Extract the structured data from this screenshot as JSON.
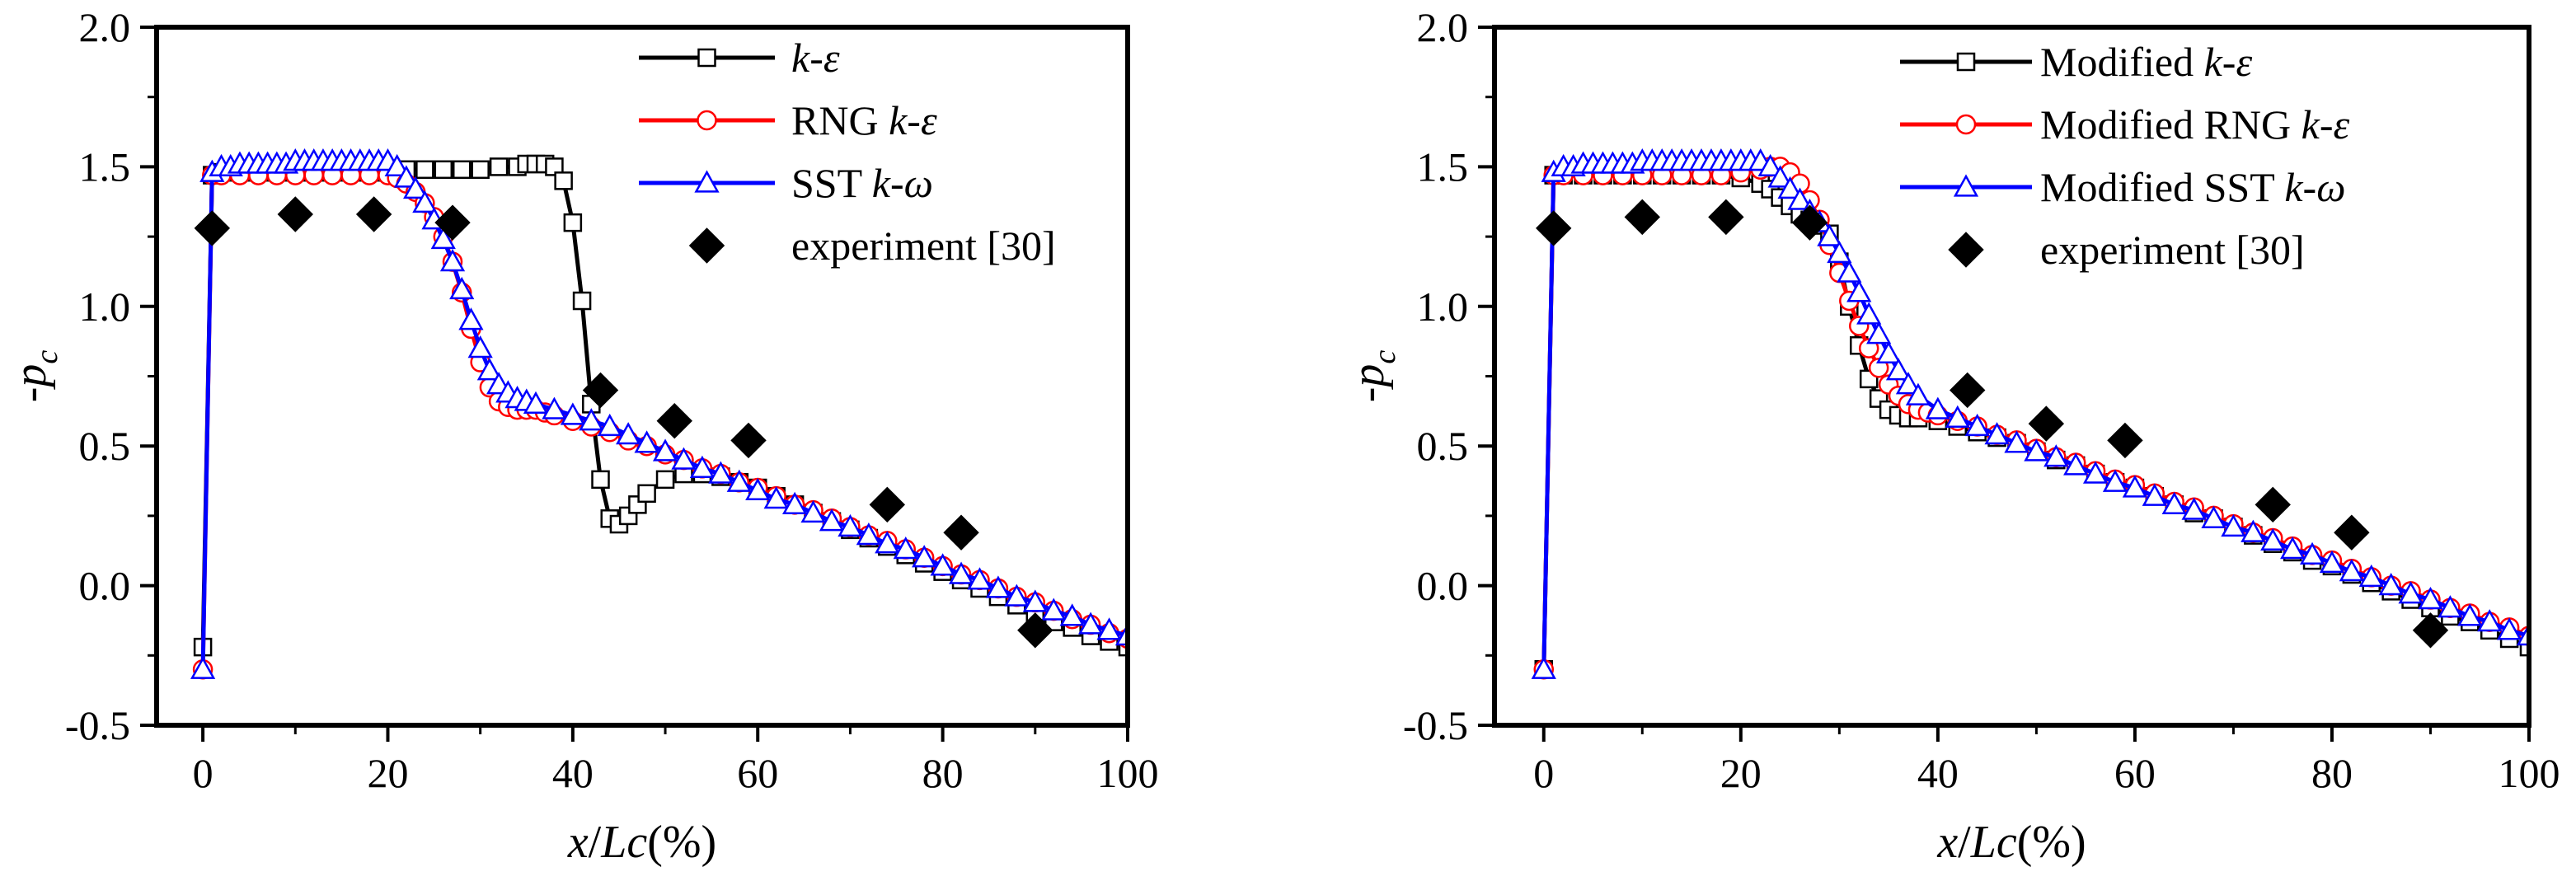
{
  "chart_data": [
    {
      "type": "line",
      "panel": "left",
      "title": "",
      "xlabel": {
        "var": "x",
        "sep": "/",
        "lc": "Lc",
        "unit": "(%)"
      },
      "ylabel": {
        "minus": "-",
        "p": "p",
        "sub": "c"
      },
      "xlim": [
        -5,
        100
      ],
      "ylim": [
        -0.5,
        2.0
      ],
      "xticks": [
        0,
        20,
        40,
        60,
        80,
        100
      ],
      "xtick_labels": [
        "0",
        "20",
        "40",
        "60",
        "80",
        "100"
      ],
      "yticks": [
        -0.5,
        0.0,
        0.5,
        1.0,
        1.5,
        2.0
      ],
      "ytick_labels": [
        "-0.5",
        "0.0",
        "0.5",
        "1.0",
        "1.5",
        "2.0"
      ],
      "legend_position": "top-right",
      "series": [
        {
          "name": "k-ε",
          "legend_parts": [
            {
              "t": "k",
              "i": true
            },
            {
              "t": "-",
              "i": false
            },
            {
              "t": "ε",
              "i": true
            }
          ],
          "color": "#000000",
          "marker": "square",
          "x": [
            0,
            1,
            2,
            4,
            6,
            8,
            10,
            12,
            14,
            16,
            18,
            20,
            22,
            24,
            26,
            28,
            30,
            32,
            34,
            35,
            36,
            37,
            38,
            39,
            40,
            41,
            42,
            43,
            44,
            45,
            46,
            47,
            48,
            50,
            52,
            54,
            56,
            58,
            60,
            62,
            64,
            66,
            68,
            70,
            72,
            74,
            76,
            78,
            80,
            82,
            84,
            86,
            88,
            90,
            92,
            94,
            96,
            98,
            100
          ],
          "y": [
            -0.22,
            1.47,
            1.48,
            1.48,
            1.48,
            1.48,
            1.48,
            1.48,
            1.48,
            1.48,
            1.48,
            1.48,
            1.49,
            1.49,
            1.49,
            1.49,
            1.49,
            1.5,
            1.5,
            1.51,
            1.51,
            1.51,
            1.5,
            1.45,
            1.3,
            1.02,
            0.65,
            0.38,
            0.24,
            0.22,
            0.25,
            0.29,
            0.33,
            0.38,
            0.4,
            0.4,
            0.39,
            0.37,
            0.35,
            0.32,
            0.29,
            0.26,
            0.23,
            0.2,
            0.17,
            0.14,
            0.11,
            0.08,
            0.05,
            0.02,
            -0.01,
            -0.04,
            -0.07,
            -0.1,
            -0.13,
            -0.15,
            -0.18,
            -0.2,
            -0.22
          ],
          "marker_every": 1
        },
        {
          "name": "RNG k-ε",
          "legend_parts": [
            {
              "t": "RNG ",
              "i": false
            },
            {
              "t": "k",
              "i": true
            },
            {
              "t": "-",
              "i": false
            },
            {
              "t": "ε",
              "i": true
            }
          ],
          "color": "#ff0000",
          "marker": "circle",
          "x": [
            0,
            1,
            2,
            4,
            6,
            8,
            10,
            12,
            14,
            16,
            18,
            20,
            21,
            22,
            23,
            24,
            25,
            26,
            27,
            28,
            29,
            30,
            31,
            32,
            33,
            34,
            35,
            36,
            37,
            38,
            40,
            42,
            44,
            46,
            48,
            50,
            52,
            54,
            56,
            58,
            60,
            62,
            64,
            66,
            68,
            70,
            72,
            74,
            76,
            78,
            80,
            82,
            84,
            86,
            88,
            90,
            92,
            94,
            96,
            98,
            100
          ],
          "y": [
            -0.3,
            1.47,
            1.47,
            1.47,
            1.47,
            1.47,
            1.47,
            1.47,
            1.47,
            1.47,
            1.47,
            1.47,
            1.46,
            1.44,
            1.41,
            1.37,
            1.32,
            1.25,
            1.16,
            1.05,
            0.92,
            0.8,
            0.71,
            0.66,
            0.64,
            0.63,
            0.63,
            0.63,
            0.62,
            0.61,
            0.59,
            0.57,
            0.55,
            0.52,
            0.5,
            0.47,
            0.45,
            0.42,
            0.4,
            0.37,
            0.35,
            0.32,
            0.29,
            0.27,
            0.24,
            0.21,
            0.18,
            0.16,
            0.13,
            0.1,
            0.07,
            0.04,
            0.02,
            -0.01,
            -0.04,
            -0.06,
            -0.09,
            -0.12,
            -0.14,
            -0.17,
            -0.19
          ],
          "marker_every": 1
        },
        {
          "name": "SST k-ω",
          "legend_parts": [
            {
              "t": "SST ",
              "i": false
            },
            {
              "t": "k",
              "i": true
            },
            {
              "t": "-",
              "i": false
            },
            {
              "t": "ω",
              "i": true
            }
          ],
          "color": "#0000ff",
          "marker": "triangle",
          "x": [
            0,
            1,
            2,
            3,
            4,
            5,
            6,
            7,
            8,
            9,
            10,
            11,
            12,
            13,
            14,
            15,
            16,
            17,
            18,
            19,
            20,
            21,
            22,
            23,
            24,
            25,
            26,
            27,
            28,
            29,
            30,
            31,
            32,
            33,
            34,
            35,
            36,
            38,
            40,
            42,
            44,
            46,
            48,
            50,
            52,
            54,
            56,
            58,
            60,
            62,
            64,
            66,
            68,
            70,
            72,
            74,
            76,
            78,
            80,
            82,
            84,
            86,
            88,
            90,
            92,
            94,
            96,
            98,
            100
          ],
          "y": [
            -0.3,
            1.48,
            1.5,
            1.5,
            1.51,
            1.51,
            1.51,
            1.51,
            1.51,
            1.51,
            1.52,
            1.52,
            1.52,
            1.52,
            1.52,
            1.52,
            1.52,
            1.52,
            1.52,
            1.52,
            1.52,
            1.5,
            1.46,
            1.42,
            1.37,
            1.31,
            1.24,
            1.16,
            1.06,
            0.95,
            0.85,
            0.77,
            0.72,
            0.69,
            0.67,
            0.66,
            0.65,
            0.63,
            0.61,
            0.59,
            0.57,
            0.54,
            0.51,
            0.48,
            0.45,
            0.42,
            0.4,
            0.37,
            0.34,
            0.31,
            0.29,
            0.26,
            0.23,
            0.21,
            0.18,
            0.15,
            0.13,
            0.1,
            0.07,
            0.04,
            0.02,
            -0.01,
            -0.04,
            -0.06,
            -0.09,
            -0.11,
            -0.14,
            -0.16,
            -0.18
          ],
          "marker_every": 1
        },
        {
          "name": "experiment [30]",
          "legend_parts": [
            {
              "t": "experiment [30]",
              "i": false
            }
          ],
          "color": "#000000",
          "marker": "diamond",
          "scatter_only": true,
          "x": [
            1,
            10,
            18.5,
            27,
            43,
            51,
            59,
            74,
            82,
            90
          ],
          "y": [
            1.28,
            1.33,
            1.33,
            1.3,
            0.7,
            0.59,
            0.52,
            0.29,
            0.19,
            -0.16
          ]
        }
      ]
    },
    {
      "type": "line",
      "panel": "right",
      "title": "",
      "xlabel": {
        "var": "x",
        "sep": "/",
        "lc": "Lc",
        "unit": "(%)"
      },
      "ylabel": {
        "minus": "-",
        "p": "p",
        "sub": "c"
      },
      "xlim": [
        -5,
        100
      ],
      "ylim": [
        -0.5,
        2.0
      ],
      "xticks": [
        0,
        20,
        40,
        60,
        80,
        100
      ],
      "xtick_labels": [
        "0",
        "20",
        "40",
        "60",
        "80",
        "100"
      ],
      "yticks": [
        -0.5,
        0.0,
        0.5,
        1.0,
        1.5,
        2.0
      ],
      "ytick_labels": [
        "-0.5",
        "0.0",
        "0.5",
        "1.0",
        "1.5",
        "2.0"
      ],
      "legend_position": "top-right",
      "series": [
        {
          "name": "Modified k-ε",
          "legend_parts": [
            {
              "t": "Modified ",
              "i": false
            },
            {
              "t": "k",
              "i": true
            },
            {
              "t": "-",
              "i": false
            },
            {
              "t": "ε",
              "i": true
            }
          ],
          "color": "#000000",
          "marker": "square",
          "x": [
            0,
            1,
            2,
            4,
            6,
            8,
            10,
            12,
            14,
            16,
            18,
            20,
            22,
            23,
            24,
            25,
            26,
            27,
            28,
            29,
            30,
            31,
            32,
            33,
            34,
            35,
            36,
            37,
            38,
            40,
            42,
            44,
            46,
            48,
            50,
            52,
            54,
            56,
            58,
            60,
            62,
            64,
            66,
            68,
            70,
            72,
            74,
            76,
            78,
            80,
            82,
            84,
            86,
            88,
            90,
            92,
            94,
            96,
            98,
            100
          ],
          "y": [
            -0.3,
            1.47,
            1.47,
            1.47,
            1.47,
            1.47,
            1.47,
            1.47,
            1.47,
            1.47,
            1.47,
            1.46,
            1.44,
            1.42,
            1.39,
            1.36,
            1.33,
            1.31,
            1.29,
            1.26,
            1.16,
            1.0,
            0.86,
            0.74,
            0.67,
            0.63,
            0.61,
            0.6,
            0.6,
            0.59,
            0.57,
            0.55,
            0.53,
            0.51,
            0.48,
            0.45,
            0.43,
            0.4,
            0.37,
            0.35,
            0.32,
            0.29,
            0.26,
            0.24,
            0.21,
            0.18,
            0.15,
            0.12,
            0.09,
            0.07,
            0.04,
            0.01,
            -0.02,
            -0.05,
            -0.08,
            -0.11,
            -0.13,
            -0.16,
            -0.19,
            -0.22
          ],
          "marker_every": 1
        },
        {
          "name": "Modified RNG k-ε",
          "legend_parts": [
            {
              "t": "Modified RNG ",
              "i": false
            },
            {
              "t": "k",
              "i": true
            },
            {
              "t": "-",
              "i": false
            },
            {
              "t": "ε",
              "i": true
            }
          ],
          "color": "#ff0000",
          "marker": "circle",
          "x": [
            0,
            1,
            2,
            4,
            6,
            8,
            10,
            12,
            14,
            16,
            18,
            20,
            22,
            23,
            24,
            25,
            26,
            27,
            28,
            29,
            30,
            31,
            32,
            33,
            34,
            35,
            36,
            37,
            38,
            39,
            40,
            42,
            44,
            46,
            48,
            50,
            52,
            54,
            56,
            58,
            60,
            62,
            64,
            66,
            68,
            70,
            72,
            74,
            76,
            78,
            80,
            82,
            84,
            86,
            88,
            90,
            92,
            94,
            96,
            98,
            100
          ],
          "y": [
            -0.3,
            1.47,
            1.47,
            1.47,
            1.47,
            1.47,
            1.47,
            1.47,
            1.47,
            1.47,
            1.47,
            1.48,
            1.49,
            1.5,
            1.5,
            1.48,
            1.44,
            1.38,
            1.31,
            1.22,
            1.12,
            1.02,
            0.93,
            0.85,
            0.78,
            0.72,
            0.68,
            0.65,
            0.63,
            0.62,
            0.61,
            0.59,
            0.57,
            0.54,
            0.52,
            0.49,
            0.46,
            0.44,
            0.41,
            0.38,
            0.36,
            0.33,
            0.3,
            0.28,
            0.25,
            0.22,
            0.19,
            0.17,
            0.14,
            0.11,
            0.09,
            0.06,
            0.03,
            0.0,
            -0.02,
            -0.05,
            -0.08,
            -0.1,
            -0.13,
            -0.15,
            -0.18
          ],
          "marker_every": 1
        },
        {
          "name": "Modified SST k-ω",
          "legend_parts": [
            {
              "t": "Modified SST ",
              "i": false
            },
            {
              "t": "k",
              "i": true
            },
            {
              "t": "-",
              "i": false
            },
            {
              "t": "ω",
              "i": true
            }
          ],
          "color": "#0000ff",
          "marker": "triangle",
          "x": [
            0,
            1,
            2,
            3,
            4,
            5,
            6,
            7,
            8,
            9,
            10,
            11,
            12,
            13,
            14,
            15,
            16,
            17,
            18,
            19,
            20,
            21,
            22,
            23,
            24,
            25,
            26,
            27,
            28,
            29,
            30,
            31,
            32,
            33,
            34,
            35,
            36,
            37,
            38,
            40,
            42,
            44,
            46,
            48,
            50,
            52,
            54,
            56,
            58,
            60,
            62,
            64,
            66,
            68,
            70,
            72,
            74,
            76,
            78,
            80,
            82,
            84,
            86,
            88,
            90,
            92,
            94,
            96,
            98,
            100
          ],
          "y": [
            -0.3,
            1.48,
            1.5,
            1.5,
            1.51,
            1.51,
            1.51,
            1.51,
            1.51,
            1.51,
            1.52,
            1.52,
            1.52,
            1.52,
            1.52,
            1.52,
            1.52,
            1.52,
            1.52,
            1.52,
            1.52,
            1.52,
            1.52,
            1.5,
            1.46,
            1.42,
            1.38,
            1.34,
            1.3,
            1.25,
            1.19,
            1.12,
            1.05,
            0.97,
            0.9,
            0.83,
            0.77,
            0.72,
            0.68,
            0.63,
            0.6,
            0.57,
            0.54,
            0.51,
            0.48,
            0.46,
            0.43,
            0.4,
            0.37,
            0.35,
            0.32,
            0.29,
            0.27,
            0.24,
            0.21,
            0.19,
            0.16,
            0.13,
            0.11,
            0.08,
            0.05,
            0.03,
            0.0,
            -0.03,
            -0.05,
            -0.08,
            -0.11,
            -0.13,
            -0.16,
            -0.18
          ],
          "marker_every": 1
        },
        {
          "name": "experiment [30]",
          "legend_parts": [
            {
              "t": "experiment [30]",
              "i": false
            }
          ],
          "color": "#000000",
          "marker": "diamond",
          "scatter_only": true,
          "x": [
            1,
            10,
            18.5,
            27,
            43,
            51,
            59,
            74,
            82,
            90
          ],
          "y": [
            1.28,
            1.32,
            1.32,
            1.3,
            0.7,
            0.58,
            0.52,
            0.29,
            0.19,
            -0.16
          ]
        }
      ]
    }
  ]
}
